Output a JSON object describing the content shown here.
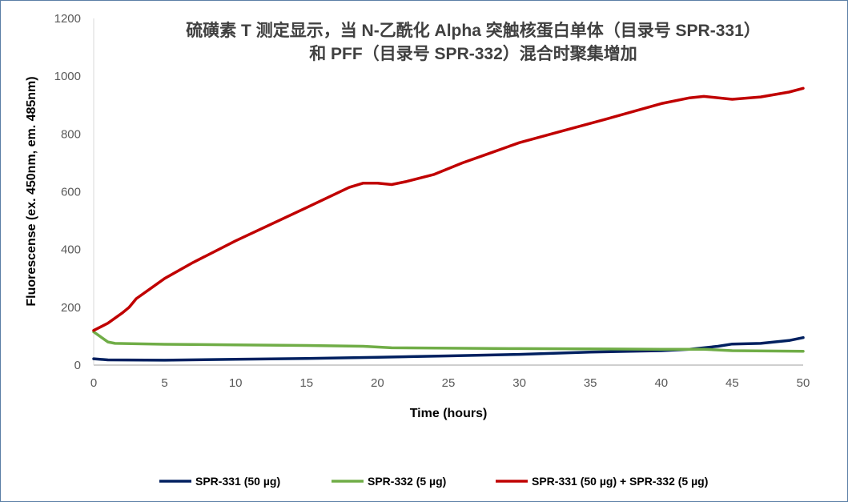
{
  "chart_data": {
    "type": "line",
    "title": [
      "硫磺素 T 测定显示，当 N-乙酰化 Alpha 突触核蛋白单体（目录号 SPR-331）",
      "和 PFF（目录号 SPR-332）混合时聚集增加"
    ],
    "xlabel": "Time (hours)",
    "ylabel": "Fluorescense (ex. 450nm, em. 485nm)",
    "xlim": [
      0,
      50
    ],
    "ylim": [
      0,
      1200
    ],
    "xticks": [
      0,
      5,
      10,
      15,
      20,
      25,
      30,
      35,
      40,
      45,
      50
    ],
    "yticks": [
      0,
      200,
      400,
      600,
      800,
      1000,
      1200
    ],
    "grid": false,
    "legend_position": "bottom",
    "series": [
      {
        "name": "SPR-331 (50 µg)",
        "color": "#002060",
        "x": [
          0,
          1,
          5,
          10,
          15,
          20,
          25,
          30,
          35,
          40,
          42,
          44,
          45,
          47,
          49,
          50
        ],
        "y": [
          22,
          18,
          17,
          20,
          23,
          27,
          32,
          37,
          45,
          50,
          55,
          65,
          73,
          75,
          85,
          95
        ]
      },
      {
        "name": "SPR-332 (5 µg)",
        "color": "#70ad47",
        "x": [
          0,
          1,
          1.5,
          5,
          10,
          15,
          19,
          21,
          30,
          40,
          43,
          45,
          50
        ],
        "y": [
          115,
          80,
          75,
          72,
          70,
          68,
          65,
          60,
          57,
          55,
          55,
          50,
          48
        ]
      },
      {
        "name": "SPR-331 (50 µg) + SPR-332 (5 µg)",
        "color": "#c00000",
        "x": [
          0,
          1,
          2,
          2.5,
          3,
          4,
          5,
          7,
          10,
          15,
          18,
          19,
          20,
          21,
          22,
          24,
          26,
          28,
          30,
          33,
          36,
          40,
          42,
          43,
          45,
          47,
          49,
          50
        ],
        "y": [
          120,
          145,
          180,
          200,
          230,
          265,
          300,
          355,
          430,
          545,
          615,
          630,
          630,
          625,
          635,
          660,
          700,
          735,
          770,
          810,
          850,
          905,
          925,
          930,
          920,
          928,
          945,
          958
        ]
      }
    ]
  }
}
